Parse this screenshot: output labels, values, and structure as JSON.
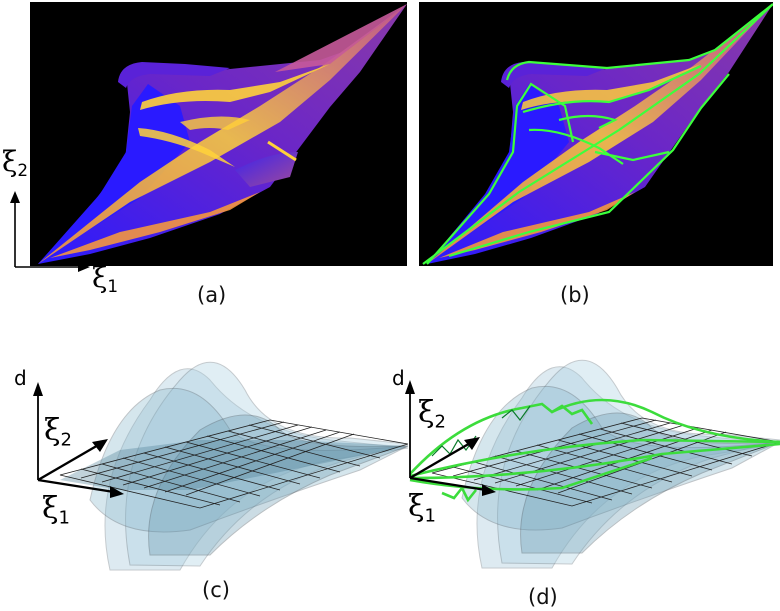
{
  "panels": {
    "a": {
      "caption": "(a)"
    },
    "b": {
      "caption": "(b)"
    },
    "c": {
      "caption": "(c)"
    },
    "d": {
      "caption": "(d)"
    }
  },
  "axes": {
    "xi_symbol": "ξ",
    "xi1_subscript": "1",
    "xi2_subscript": "2",
    "d_label": "d"
  },
  "colors": {
    "caustic_background": "#000000",
    "fold_blue": "#2a1aff",
    "fold_purple": "#7a2ab8",
    "caustic_yellow": "#ffd23a",
    "highlight_green": "#3cff3c",
    "surface_blue": "#9fc6d8",
    "grid_line": "#222222"
  }
}
